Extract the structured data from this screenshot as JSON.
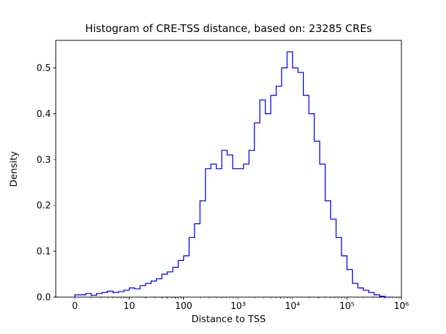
{
  "figure": {
    "background": "#ffffff"
  },
  "chart_data": {
    "type": "bar",
    "subtype": "step-histogram",
    "title": "Histogram of CRE-TSS distance, based on: 23285 CREs",
    "xlabel": "Distance to TSS",
    "ylabel": "Density",
    "n_cres": 23285,
    "x_scale": "symlog",
    "grid": false,
    "legend": "none",
    "line_color": "#0000ff",
    "axes_color": "#000000",
    "xlim_log10": [
      -0.35,
      6.0
    ],
    "ylim": [
      0,
      0.56
    ],
    "x_ticks": [
      {
        "pos": 0,
        "label": "0"
      },
      {
        "pos": 1,
        "label": "10"
      },
      {
        "pos": 2,
        "label": "100"
      },
      {
        "pos": 3,
        "label": "10³"
      },
      {
        "pos": 4,
        "label": "10⁴"
      },
      {
        "pos": 5,
        "label": "10⁵"
      },
      {
        "pos": 6,
        "label": "10⁶"
      }
    ],
    "y_ticks": [
      {
        "value": 0.0,
        "label": "0.0"
      },
      {
        "value": 0.1,
        "label": "0.1"
      },
      {
        "value": 0.2,
        "label": "0.2"
      },
      {
        "value": 0.3,
        "label": "0.3"
      },
      {
        "value": 0.4,
        "label": "0.4"
      },
      {
        "value": 0.5,
        "label": "0.5"
      }
    ],
    "bin_start_log10": 0.0,
    "bin_width_log10": 0.1,
    "densities": [
      0.005,
      0.005,
      0.008,
      0.004,
      0.008,
      0.01,
      0.013,
      0.01,
      0.012,
      0.015,
      0.02,
      0.018,
      0.025,
      0.03,
      0.035,
      0.04,
      0.05,
      0.055,
      0.065,
      0.08,
      0.09,
      0.13,
      0.16,
      0.21,
      0.28,
      0.29,
      0.28,
      0.32,
      0.31,
      0.28,
      0.28,
      0.29,
      0.32,
      0.38,
      0.43,
      0.4,
      0.44,
      0.46,
      0.5,
      0.535,
      0.5,
      0.49,
      0.44,
      0.4,
      0.34,
      0.29,
      0.21,
      0.17,
      0.13,
      0.09,
      0.06,
      0.03,
      0.02,
      0.015,
      0.01,
      0.005,
      0.002,
      0.0
    ]
  }
}
